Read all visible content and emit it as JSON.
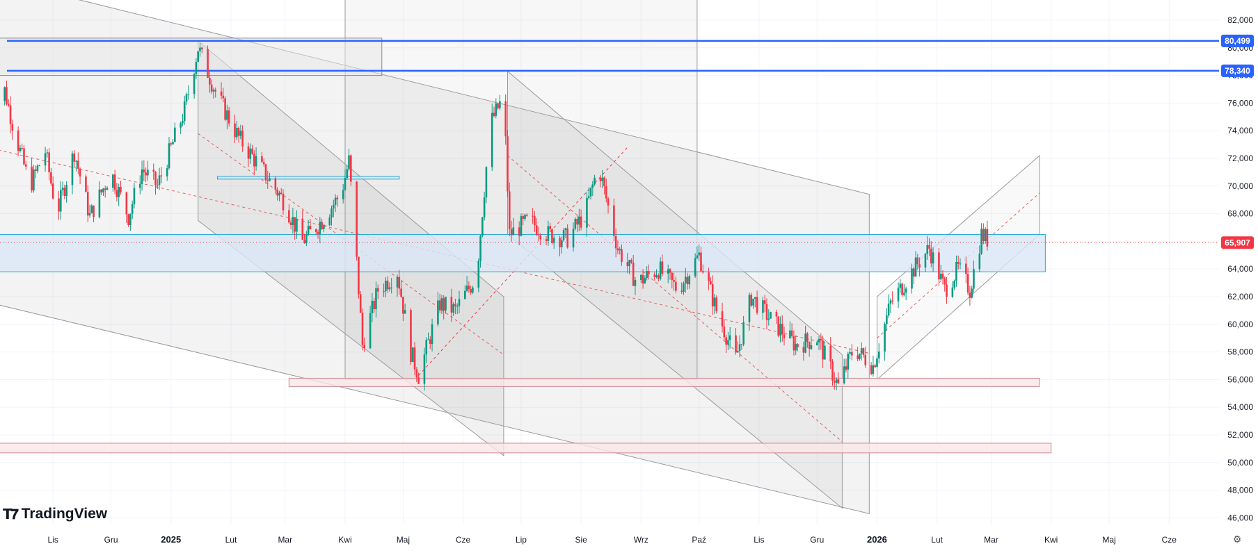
{
  "app": {
    "brand": "TradingView"
  },
  "colors": {
    "up": "#089981",
    "down": "#f23645",
    "level_line": "#2962ff",
    "level_bg": "#2962ff",
    "last_price_bg": "#f23645",
    "zone_blue": "#dbe7f7",
    "zone_pink": "#fbe6e8",
    "channel_fill": "#9e9e9e",
    "grid": "#f0f3fa"
  },
  "chart_data": {
    "type": "candlestick",
    "y_axis": {
      "range": [
        45000,
        83000
      ],
      "ticks": [
        "46,000",
        "48,000",
        "50,000",
        "52,000",
        "54,000",
        "56,000",
        "58,000",
        "60,000",
        "62,000",
        "64,000",
        "66,000",
        "68,000",
        "70,000",
        "72,000",
        "74,000",
        "76,000",
        "78,000",
        "80,000",
        "82,000"
      ]
    },
    "x_axis": {
      "range": [
        "2024-10-01",
        "2026-06-30"
      ],
      "ticks": [
        {
          "label": "Lis",
          "date": "2024-11-01",
          "bold": false
        },
        {
          "label": "Gru",
          "date": "2024-12-01",
          "bold": false
        },
        {
          "label": "2025",
          "date": "2025-01-01",
          "bold": true
        },
        {
          "label": "Lut",
          "date": "2025-02-01",
          "bold": false
        },
        {
          "label": "Mar",
          "date": "2025-03-01",
          "bold": false
        },
        {
          "label": "Kwi",
          "date": "2025-04-01",
          "bold": false
        },
        {
          "label": "Maj",
          "date": "2025-05-01",
          "bold": false
        },
        {
          "label": "Cze",
          "date": "2025-06-01",
          "bold": false
        },
        {
          "label": "Lip",
          "date": "2025-07-01",
          "bold": false
        },
        {
          "label": "Sie",
          "date": "2025-08-01",
          "bold": false
        },
        {
          "label": "Wrz",
          "date": "2025-09-01",
          "bold": false
        },
        {
          "label": "Paź",
          "date": "2025-10-01",
          "bold": false
        },
        {
          "label": "Lis",
          "date": "2025-11-01",
          "bold": false
        },
        {
          "label": "Gru",
          "date": "2025-12-01",
          "bold": false
        },
        {
          "label": "2026",
          "date": "2026-01-01",
          "bold": true
        },
        {
          "label": "Lut",
          "date": "2026-02-01",
          "bold": false
        },
        {
          "label": "Mar",
          "date": "2026-03-01",
          "bold": false
        },
        {
          "label": "Kwi",
          "date": "2026-04-01",
          "bold": false
        },
        {
          "label": "Maj",
          "date": "2026-05-01",
          "bold": false
        },
        {
          "label": "Cze",
          "date": "2026-06-01",
          "bold": false
        }
      ]
    },
    "price_path": [
      [
        "2024-10-01",
        74500
      ],
      [
        "2024-10-06",
        77500
      ],
      [
        "2024-10-12",
        74000
      ],
      [
        "2024-10-20",
        70000
      ],
      [
        "2024-10-28",
        72500
      ],
      [
        "2024-11-03",
        68000
      ],
      [
        "2024-11-12",
        72500
      ],
      [
        "2024-11-20",
        67800
      ],
      [
        "2024-12-01",
        71000
      ],
      [
        "2024-12-10",
        67800
      ],
      [
        "2024-12-17",
        71200
      ],
      [
        "2024-12-25",
        70000
      ],
      [
        "2025-01-08",
        75500
      ],
      [
        "2025-01-15",
        80000
      ],
      [
        "2025-01-25",
        76500
      ],
      [
        "2025-02-05",
        73500
      ],
      [
        "2025-02-18",
        71000
      ],
      [
        "2025-02-28",
        69000
      ],
      [
        "2025-03-10",
        66000
      ],
      [
        "2025-03-20",
        67500
      ],
      [
        "2025-03-30",
        69500
      ],
      [
        "2025-04-03",
        71800
      ],
      [
        "2025-04-07",
        64500
      ],
      [
        "2025-04-10",
        58500
      ],
      [
        "2025-04-18",
        62500
      ],
      [
        "2025-04-28",
        63800
      ],
      [
        "2025-05-05",
        58000
      ],
      [
        "2025-05-09",
        56300
      ],
      [
        "2025-05-20",
        61500
      ],
      [
        "2025-05-28",
        61000
      ],
      [
        "2025-06-08",
        63500
      ],
      [
        "2025-06-15",
        74500
      ],
      [
        "2025-06-22",
        76500
      ],
      [
        "2025-06-25",
        66500
      ],
      [
        "2025-07-05",
        67500
      ],
      [
        "2025-07-15",
        66500
      ],
      [
        "2025-07-25",
        66200
      ],
      [
        "2025-08-03",
        68000
      ],
      [
        "2025-08-10",
        71500
      ],
      [
        "2025-08-20",
        65500
      ],
      [
        "2025-08-30",
        63000
      ],
      [
        "2025-09-10",
        64000
      ],
      [
        "2025-09-20",
        62500
      ],
      [
        "2025-10-01",
        65000
      ],
      [
        "2025-10-10",
        61000
      ],
      [
        "2025-10-20",
        57500
      ],
      [
        "2025-10-28",
        62000
      ],
      [
        "2025-11-08",
        60200
      ],
      [
        "2025-11-20",
        58500
      ],
      [
        "2025-12-01",
        59000
      ],
      [
        "2025-12-12",
        55500
      ],
      [
        "2025-12-20",
        58300
      ],
      [
        "2025-12-30",
        57000
      ],
      [
        "2026-01-08",
        61500
      ],
      [
        "2026-01-20",
        64000
      ],
      [
        "2026-01-28",
        65500
      ],
      [
        "2026-02-05",
        62500
      ],
      [
        "2026-02-12",
        64000
      ],
      [
        "2026-02-18",
        62500
      ],
      [
        "2026-02-24",
        66500
      ],
      [
        "2026-03-01",
        65907
      ]
    ],
    "horizontal_levels": [
      {
        "price": 80499,
        "label": "80,499"
      },
      {
        "price": 78340,
        "label": "78,340"
      }
    ],
    "last_price": {
      "price": 65907,
      "label": "65,907"
    },
    "zones": [
      {
        "from": "2024-10-01",
        "to": "2026-03-29",
        "low": 63800,
        "high": 66500,
        "color": "blue"
      },
      {
        "from": "2025-01-25",
        "to": "2025-04-29",
        "low": 70500,
        "high": 70700,
        "color": "blue"
      },
      {
        "from": "2025-03-03",
        "to": "2026-03-26",
        "low": 55500,
        "high": 56100,
        "color": "pink"
      },
      {
        "from": "2024-10-01",
        "to": "2026-04-01",
        "low": 50700,
        "high": 51400,
        "color": "pink"
      },
      {
        "from": "2024-10-01",
        "to": "2025-04-20",
        "low": 78000,
        "high": 80700,
        "color": "grey"
      }
    ]
  }
}
